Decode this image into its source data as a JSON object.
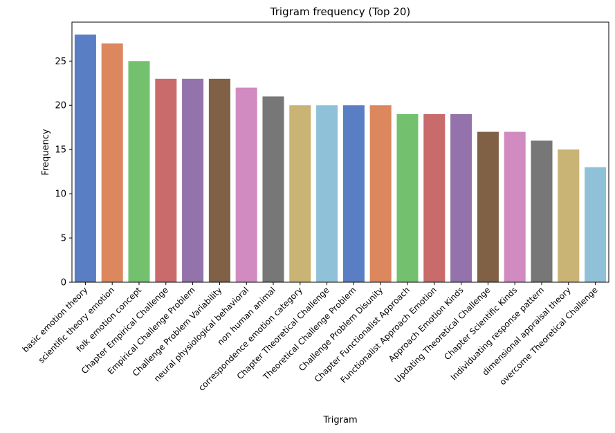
{
  "chart_data": {
    "type": "bar",
    "title": "Trigram frequency (Top 20)",
    "xlabel": "Trigram",
    "ylabel": "Frequency",
    "ylim": [
      0,
      29.4
    ],
    "yticks": [
      0,
      5,
      10,
      15,
      20,
      25
    ],
    "categories": [
      "basic emotion theory",
      "scientific theory emotion",
      "folk emotion concept",
      "Chapter Empirical Challenge",
      "Empirical Challenge Problem",
      "Challenge Problem Variability",
      "neural physiological behavioral",
      "non human animal",
      "correspondence emotion category",
      "Chapter Theoretical Challenge",
      "Theoretical Challenge Problem",
      "Challenge Problem Disunity",
      "Chapter Functionalist Approach",
      "Functionalist Approach Emotion",
      "Approach Emotion Kinds",
      "Updating Theoretical Challenge",
      "Chapter Scientific Kinds",
      "Individuating response pattern",
      "dimensional appraisal theory",
      "overcome Theoretical Challenge"
    ],
    "values": [
      28,
      27,
      25,
      23,
      23,
      23,
      22,
      21,
      20,
      20,
      20,
      20,
      19,
      19,
      19,
      17,
      17,
      16,
      15,
      13
    ],
    "colors": [
      "#5a7ec4",
      "#dc875e",
      "#73c16f",
      "#c96b6b",
      "#9473ad",
      "#806145",
      "#d18bc1",
      "#777777",
      "#c9b375",
      "#8fc2d8",
      "#5a7ec4",
      "#dc875e",
      "#73c16f",
      "#c96b6b",
      "#9473ad",
      "#806145",
      "#d18bc1",
      "#777777",
      "#c9b375",
      "#8fc2d8"
    ],
    "grid": false,
    "legend": "none"
  }
}
